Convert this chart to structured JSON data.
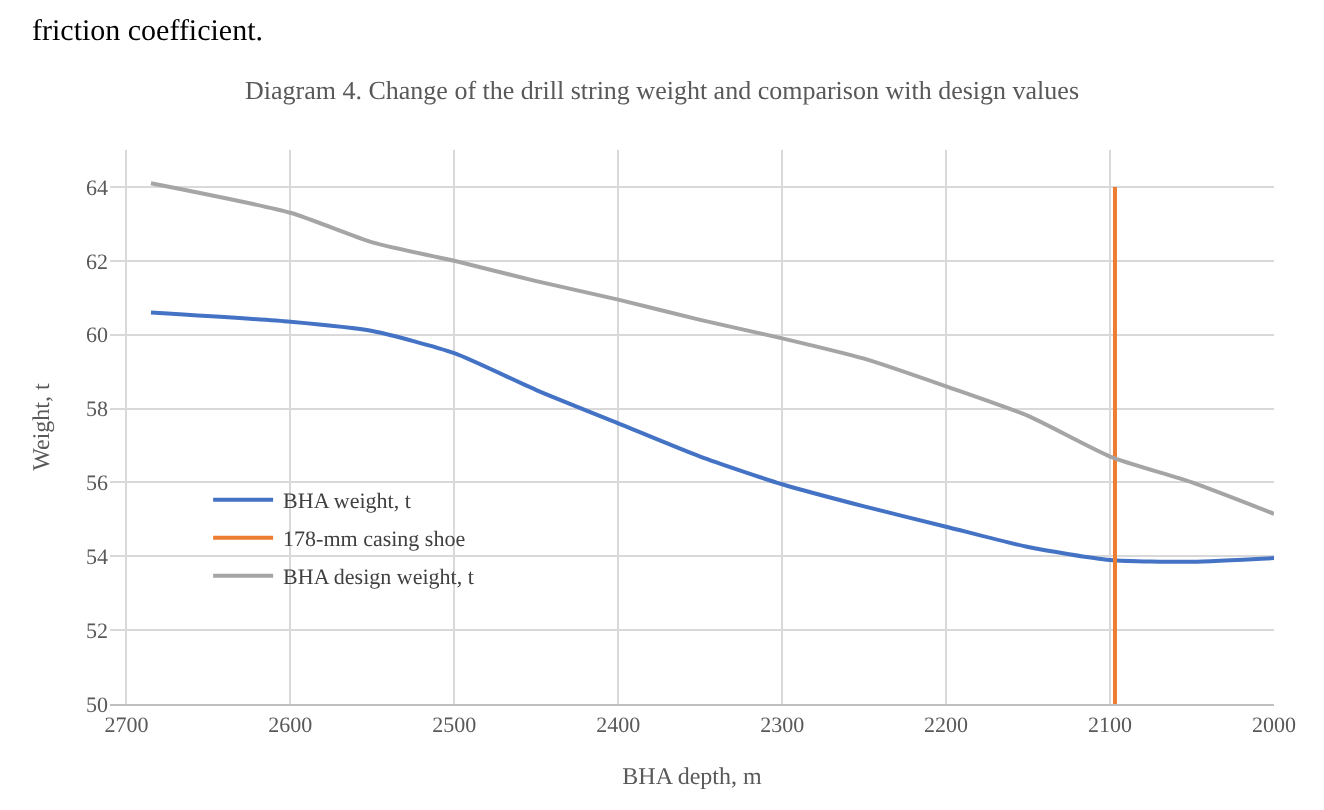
{
  "chart_data": {
    "type": "line",
    "title": "Diagram 4. Change of the drill string weight and comparison with design values",
    "xlabel": "BHA depth, m",
    "ylabel": "Weight, t",
    "annotations": [
      "friction coefficient."
    ],
    "x": [
      2685,
      2600,
      2550,
      2500,
      2450,
      2400,
      2350,
      2300,
      2250,
      2200,
      2150,
      2100,
      2050,
      2000
    ],
    "series": [
      {
        "name": "BHA weight, t",
        "color": "#4472c4",
        "values": [
          60.6,
          60.35,
          60.1,
          59.5,
          58.5,
          57.6,
          56.7,
          55.95,
          55.35,
          54.8,
          54.25,
          53.9,
          53.85,
          53.95
        ]
      },
      {
        "name": "178-mm casing shoe",
        "color": "#ed7d31",
        "x": [
          2097,
          2097
        ],
        "values": [
          50,
          64
        ]
      },
      {
        "name": "BHA design weight, t",
        "color": "#a5a5a5",
        "values": [
          64.1,
          63.3,
          62.5,
          62.0,
          61.45,
          60.95,
          60.4,
          59.9,
          59.35,
          58.6,
          57.8,
          56.7,
          56.0,
          55.15
        ]
      }
    ],
    "xlim": [
      2710,
      2000
    ],
    "xticks": [
      2700,
      2600,
      2500,
      2400,
      2300,
      2200,
      2100,
      2000
    ],
    "ylim": [
      50,
      65
    ],
    "yticks": [
      50,
      52,
      54,
      56,
      58,
      60,
      62,
      64
    ],
    "grid": true,
    "legend": "left",
    "marker": "none",
    "line_style": "solid"
  }
}
